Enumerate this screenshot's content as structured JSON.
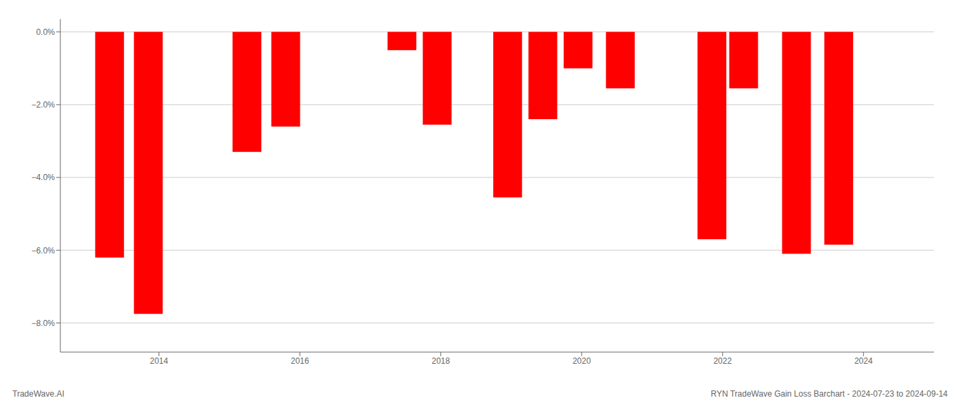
{
  "chart_data": {
    "type": "bar",
    "x": [
      2013.3,
      2013.85,
      2015.25,
      2015.8,
      2017.45,
      2017.95,
      2018.95,
      2019.45,
      2019.95,
      2020.55,
      2021.85,
      2022.3,
      2023.05,
      2023.65
    ],
    "values": [
      -6.2,
      -7.75,
      -3.3,
      -2.6,
      -0.5,
      -2.55,
      -4.55,
      -2.4,
      -1.0,
      -1.55,
      -5.7,
      -1.55,
      -6.1,
      -5.85
    ],
    "color": "#ff0000",
    "xlim": [
      2012.6,
      2025.0
    ],
    "xticks": [
      2014,
      2016,
      2018,
      2020,
      2022,
      2024
    ],
    "ylim": [
      -8.8,
      0.35
    ],
    "yticks": [
      {
        "value": 0.0,
        "label": "0.0%"
      },
      {
        "value": -2.0,
        "label": "−2.0%"
      },
      {
        "value": -4.0,
        "label": "−4.0%"
      },
      {
        "value": -6.0,
        "label": "−6.0%"
      },
      {
        "value": -8.0,
        "label": "−8.0%"
      }
    ],
    "grid": true,
    "annotations": [
      "TradeWave.AI",
      "RYN TradeWave Gain Loss Barchart - 2024-07-23 to 2024-09-14"
    ]
  }
}
